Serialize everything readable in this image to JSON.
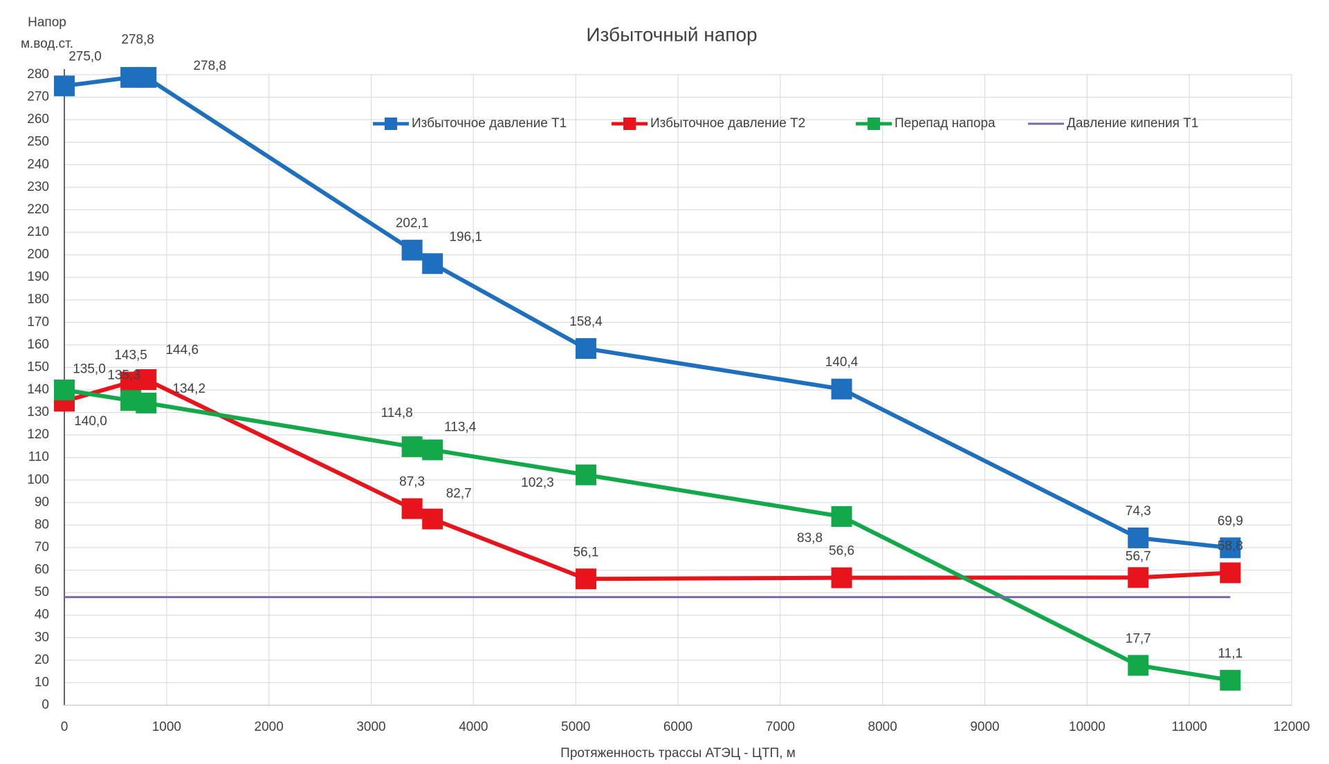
{
  "chart_data": {
    "type": "line",
    "title": "Избыточный напор",
    "ylabel": [
      "Напор",
      "м.вод.ст."
    ],
    "xlabel": "Протяженность трассы АТЭЦ - ЦТП, м",
    "x": [
      0,
      650,
      800,
      3400,
      3600,
      5100,
      7600,
      10500,
      11400
    ],
    "series": [
      {
        "name": "Избыточное давление Т1",
        "color": "#1f6fbf",
        "marker": true,
        "values": [
          275.0,
          278.8,
          278.8,
          202.1,
          196.1,
          158.4,
          140.4,
          74.3,
          69.9
        ],
        "value_labels": [
          "275,0",
          "278,8",
          "278,8",
          "202,1",
          "196,1",
          "158,4",
          "140,4",
          "74,3",
          "69,9"
        ]
      },
      {
        "name": "Избыточное давление Т2",
        "color": "#e8141c",
        "marker": true,
        "values": [
          135.0,
          143.5,
          144.6,
          87.3,
          82.7,
          56.1,
          56.6,
          56.7,
          58.8
        ],
        "value_labels": [
          "135,0",
          "143,5",
          "144,6",
          "87,3",
          "82,7",
          "56,1",
          "56,6",
          "56,7",
          "58,8"
        ]
      },
      {
        "name": "Перепад напора",
        "color": "#13a84a",
        "marker": true,
        "values": [
          140.0,
          135.3,
          134.2,
          114.8,
          113.4,
          102.3,
          83.8,
          17.7,
          11.1
        ],
        "value_labels": [
          "140,0",
          "135,3",
          "134,2",
          "114,8",
          "113,4",
          "102,3",
          "83,8",
          "17,7",
          "11,1"
        ]
      },
      {
        "name": "Давление кипения Т1",
        "color": "#7a68a8",
        "marker": false,
        "values": [
          48,
          48,
          48,
          48,
          48,
          48,
          48,
          48,
          48
        ]
      }
    ],
    "xlim": [
      0,
      12000
    ],
    "xticks": [
      0,
      1000,
      2000,
      3000,
      4000,
      5000,
      6000,
      7000,
      8000,
      9000,
      10000,
      11000,
      12000
    ],
    "ylim": [
      0,
      280
    ],
    "yticks": [
      0,
      10,
      20,
      30,
      40,
      50,
      60,
      70,
      80,
      90,
      100,
      110,
      120,
      130,
      140,
      150,
      160,
      170,
      180,
      190,
      200,
      210,
      220,
      230,
      240,
      250,
      260,
      270,
      280
    ],
    "grid": true,
    "legend": "top"
  }
}
